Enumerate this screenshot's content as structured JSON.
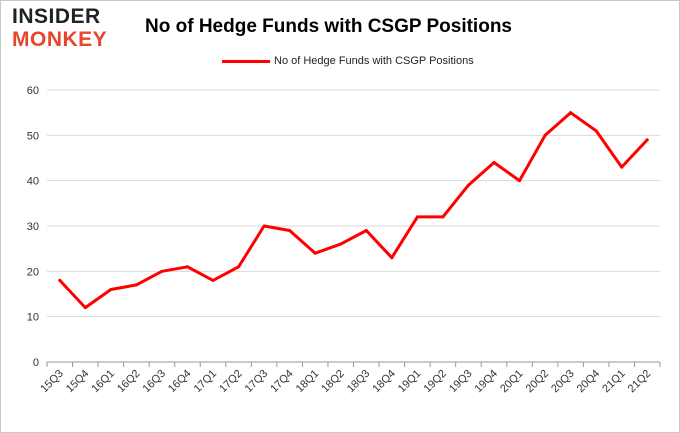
{
  "logo": {
    "line1": "INSIDER",
    "line2": "MONKEY"
  },
  "chart_data": {
    "type": "line",
    "title": "No of Hedge Funds with CSGP Positions",
    "xlabel": "",
    "ylabel": "",
    "categories": [
      "15Q3",
      "15Q4",
      "16Q1",
      "16Q2",
      "16Q3",
      "16Q4",
      "17Q1",
      "17Q2",
      "17Q3",
      "17Q4",
      "18Q1",
      "18Q2",
      "18Q3",
      "18Q4",
      "19Q1",
      "19Q2",
      "19Q3",
      "19Q4",
      "20Q1",
      "20Q2",
      "20Q3",
      "20Q4",
      "21Q1",
      "21Q2"
    ],
    "series": [
      {
        "name": "No of Hedge Funds with CSGP Positions",
        "color": "#ff0000",
        "values": [
          18,
          12,
          16,
          17,
          20,
          21,
          18,
          21,
          30,
          29,
          24,
          26,
          29,
          23,
          32,
          32,
          39,
          44,
          40,
          50,
          55,
          51,
          43,
          49
        ]
      }
    ],
    "yticks": [
      0,
      10,
      20,
      30,
      40,
      50,
      60
    ],
    "ylim": [
      0,
      60
    ],
    "grid": true,
    "legend_position": "top-center"
  }
}
